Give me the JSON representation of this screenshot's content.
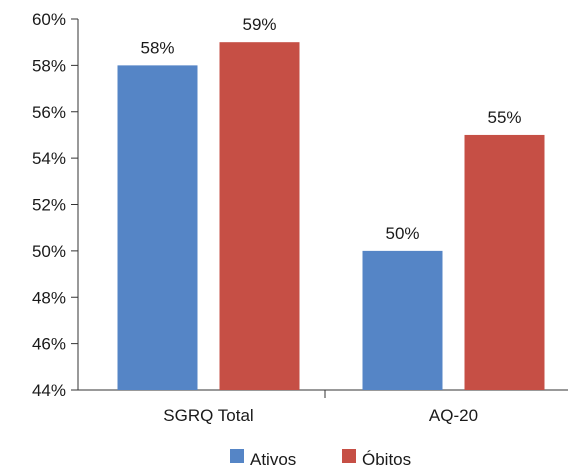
{
  "chart_data": {
    "type": "bar",
    "categories": [
      "SGRQ Total",
      "AQ-20"
    ],
    "series": [
      {
        "name": "Ativos",
        "values": [
          58,
          50
        ],
        "labels": [
          "58%",
          "50%"
        ],
        "color": "#5585c6"
      },
      {
        "name": "Óbitos",
        "values": [
          59,
          55
        ],
        "labels": [
          "59%",
          "55%"
        ],
        "color": "#c64f45"
      }
    ],
    "ylim": [
      44,
      60
    ],
    "yticks": [
      44,
      46,
      48,
      50,
      52,
      54,
      56,
      58,
      60
    ],
    "ytick_labels": [
      "44%",
      "46%",
      "48%",
      "50%",
      "52%",
      "54%",
      "56%",
      "58%",
      "60%"
    ],
    "title": "",
    "xlabel": "",
    "ylabel": "",
    "grid": false,
    "legend_position": "bottom"
  }
}
